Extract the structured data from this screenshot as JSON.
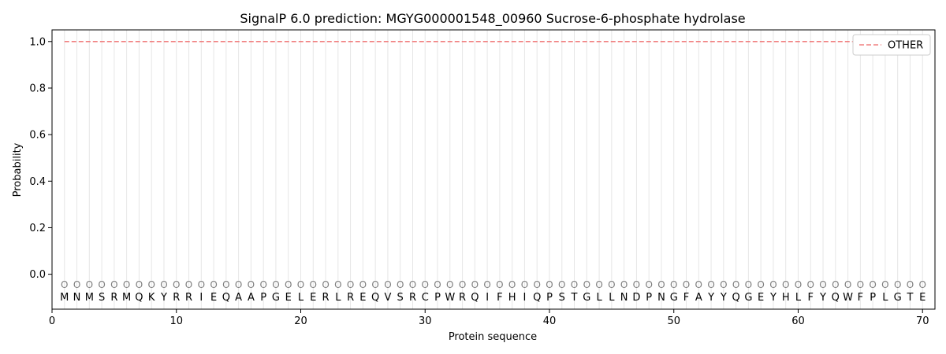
{
  "chart_data": {
    "type": "line",
    "title": "SignalP 6.0 prediction: MGYG000001548_00960 Sucrose-6-phosphate hydrolase",
    "xlabel": "Protein sequence",
    "ylabel": "Probability",
    "xlim": [
      0,
      71
    ],
    "ylim": [
      -0.15,
      1.05
    ],
    "x_ticks": [
      0,
      10,
      20,
      30,
      40,
      50,
      60,
      70
    ],
    "y_ticks": [
      0.0,
      0.2,
      0.4,
      0.6,
      0.8,
      1.0
    ],
    "x_tick_labels": [
      "0",
      "10",
      "20",
      "30",
      "40",
      "50",
      "60",
      "70"
    ],
    "y_tick_labels": [
      "0.0",
      "0.2",
      "0.4",
      "0.6",
      "0.8",
      "1.0"
    ],
    "sequence": [
      "M",
      "N",
      "M",
      "S",
      "R",
      "M",
      "Q",
      "K",
      "Y",
      "R",
      "R",
      "I",
      "E",
      "Q",
      "A",
      "A",
      "P",
      "G",
      "E",
      "L",
      "E",
      "R",
      "L",
      "R",
      "E",
      "Q",
      "V",
      "S",
      "R",
      "C",
      "P",
      "W",
      "R",
      "Q",
      "I",
      "F",
      "H",
      "I",
      "Q",
      "P",
      "S",
      "T",
      "G",
      "L",
      "L",
      "N",
      "D",
      "P",
      "N",
      "G",
      "F",
      "A",
      "Y",
      "Y",
      "Q",
      "G",
      "E",
      "Y",
      "H",
      "L",
      "F",
      "Y",
      "Q",
      "W",
      "F",
      "P",
      "L",
      "G",
      "T",
      "E"
    ],
    "predicted_label": "O",
    "marker_y": -0.045,
    "series": [
      {
        "name": "OTHER",
        "style": "dashed",
        "color": "#f08080",
        "x_start": 1,
        "x_end": 70,
        "value": 1.0
      }
    ],
    "grid": "vertical lines at each residue",
    "legend_position": "top-right"
  }
}
